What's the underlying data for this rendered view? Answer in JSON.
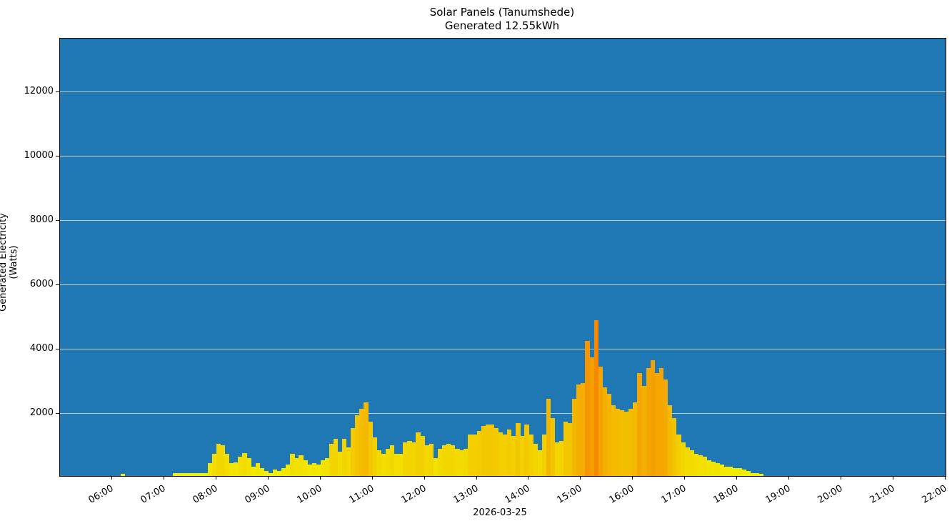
{
  "chart_data": {
    "type": "bar",
    "title": "Solar Panels (Tanumshede)",
    "subtitle": "Generated 12.55kWh",
    "xlabel": "2026-03-25",
    "ylabel": "Generated Electricity (Watts)",
    "ylim": [
      45,
      13650
    ],
    "xlim": [
      "05:00",
      "22:00"
    ],
    "grid": "horizontal",
    "background_color": "#1f77b4",
    "bar_color_low": "#f2f200",
    "bar_color_high": "#f58a00",
    "yticks": [
      2000,
      4000,
      6000,
      8000,
      10000,
      12000
    ],
    "xticks": [
      "06:00",
      "07:00",
      "08:00",
      "09:00",
      "10:00",
      "11:00",
      "12:00",
      "13:00",
      "14:00",
      "15:00",
      "16:00",
      "17:00",
      "18:00",
      "19:00",
      "20:00",
      "21:00",
      "22:00"
    ],
    "interval_minutes": 5,
    "x": [
      "06:10",
      "07:10",
      "07:15",
      "07:20",
      "07:25",
      "07:30",
      "07:35",
      "07:40",
      "07:45",
      "07:50",
      "07:55",
      "08:00",
      "08:05",
      "08:10",
      "08:15",
      "08:20",
      "08:25",
      "08:30",
      "08:35",
      "08:40",
      "08:45",
      "08:50",
      "08:55",
      "09:00",
      "09:05",
      "09:10",
      "09:15",
      "09:20",
      "09:25",
      "09:30",
      "09:35",
      "09:40",
      "09:45",
      "09:50",
      "09:55",
      "10:00",
      "10:05",
      "10:10",
      "10:15",
      "10:20",
      "10:25",
      "10:30",
      "10:35",
      "10:40",
      "10:45",
      "10:50",
      "10:55",
      "11:00",
      "11:05",
      "11:10",
      "11:15",
      "11:20",
      "11:25",
      "11:30",
      "11:35",
      "11:40",
      "11:45",
      "11:50",
      "11:55",
      "12:00",
      "12:05",
      "12:10",
      "12:15",
      "12:20",
      "12:25",
      "12:30",
      "12:35",
      "12:40",
      "12:45",
      "12:50",
      "12:55",
      "13:00",
      "13:05",
      "13:10",
      "13:15",
      "13:20",
      "13:25",
      "13:30",
      "13:35",
      "13:40",
      "13:45",
      "13:50",
      "13:55",
      "14:00",
      "14:05",
      "14:10",
      "14:15",
      "14:20",
      "14:25",
      "14:30",
      "14:35",
      "14:40",
      "14:45",
      "14:50",
      "14:55",
      "15:00",
      "15:05",
      "15:10",
      "15:15",
      "15:20",
      "15:25",
      "15:30",
      "15:35",
      "15:40",
      "15:45",
      "15:50",
      "15:55",
      "16:00",
      "16:05",
      "16:10",
      "16:15",
      "16:20",
      "16:25",
      "16:30",
      "16:35",
      "16:40",
      "16:45",
      "16:50",
      "16:55",
      "17:00",
      "17:05",
      "17:10",
      "17:15",
      "17:20",
      "17:25",
      "17:30",
      "17:35",
      "17:40",
      "17:45",
      "17:50",
      "17:55",
      "18:00",
      "18:05",
      "18:10",
      "18:15",
      "18:20",
      "18:25"
    ],
    "values": [
      60,
      100,
      100,
      100,
      100,
      100,
      100,
      100,
      100,
      400,
      700,
      1000,
      950,
      700,
      400,
      420,
      600,
      720,
      550,
      300,
      400,
      250,
      150,
      80,
      200,
      150,
      250,
      350,
      700,
      550,
      650,
      500,
      350,
      400,
      350,
      500,
      550,
      1000,
      1150,
      750,
      1150,
      900,
      1500,
      1900,
      2100,
      2300,
      1700,
      1200,
      800,
      700,
      850,
      950,
      700,
      700,
      1050,
      1100,
      1050,
      1350,
      1250,
      950,
      1000,
      550,
      850,
      950,
      1000,
      950,
      850,
      800,
      850,
      1300,
      1300,
      1400,
      1550,
      1600,
      1600,
      1500,
      1350,
      1300,
      1450,
      1250,
      1650,
      1250,
      1600,
      1300,
      1000,
      800,
      1300,
      2400,
      1800,
      1050,
      1100,
      1700,
      1650,
      2400,
      2850,
      2900,
      4200,
      3700,
      4850,
      3400,
      2750,
      2550,
      2200,
      2100,
      2050,
      2000,
      2100,
      2300,
      3200,
      2800,
      3350,
      3600,
      3200,
      3350,
      3000,
      2200,
      1800,
      1300,
      1050,
      900,
      800,
      700,
      650,
      600,
      500,
      450,
      400,
      350,
      300,
      300,
      250,
      250,
      200,
      150,
      100,
      100,
      60
    ]
  }
}
